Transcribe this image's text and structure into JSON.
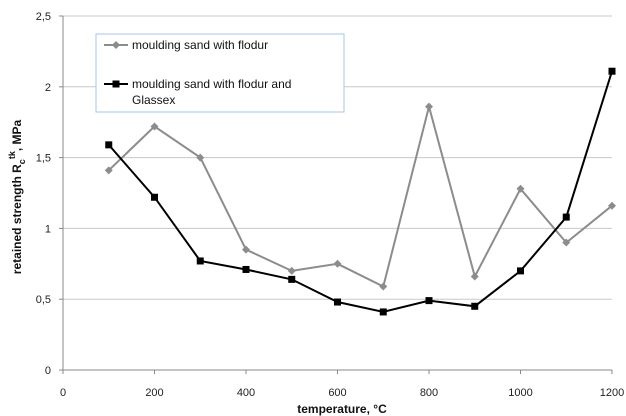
{
  "chart_data": {
    "type": "line",
    "xlabel": "temperature, °C",
    "ylabel": "retained strength R",
    "ylabel_sub": "c",
    "ylabel_sup": "tk",
    "ylabel_suffix": ", MPa",
    "xlim": [
      0,
      1200
    ],
    "ylim": [
      0,
      2.5
    ],
    "x_ticks": [
      "0",
      "200",
      "400",
      "600",
      "800",
      "1000",
      "1200"
    ],
    "x_tick_values": [
      0,
      200,
      400,
      600,
      800,
      1000,
      1200
    ],
    "y_ticks": [
      "0",
      "0,5",
      "1",
      "1,5",
      "2",
      "2,5"
    ],
    "y_tick_values": [
      0,
      0.5,
      1,
      1.5,
      2,
      2.5
    ],
    "grid": "horizontal",
    "legend_position": "top-left",
    "x": [
      100,
      200,
      300,
      400,
      500,
      600,
      700,
      800,
      900,
      1000,
      1100,
      1200
    ],
    "series": [
      {
        "name": "moulding sand with flodur",
        "marker": "diamond",
        "color": "#8c8c8c",
        "values": [
          1.41,
          1.72,
          1.5,
          0.85,
          0.7,
          0.75,
          0.59,
          1.86,
          0.66,
          1.28,
          0.9,
          1.16
        ]
      },
      {
        "name": "moulding sand with flodur and Glassex",
        "marker": "square",
        "color": "#000000",
        "values": [
          1.59,
          1.22,
          0.77,
          0.71,
          0.64,
          0.48,
          0.41,
          0.49,
          0.45,
          0.7,
          1.08,
          2.11
        ]
      }
    ]
  },
  "legend": {
    "line1": "moulding sand with flodur",
    "line2a": "moulding sand with flodur and",
    "line2b": "Glassex"
  }
}
